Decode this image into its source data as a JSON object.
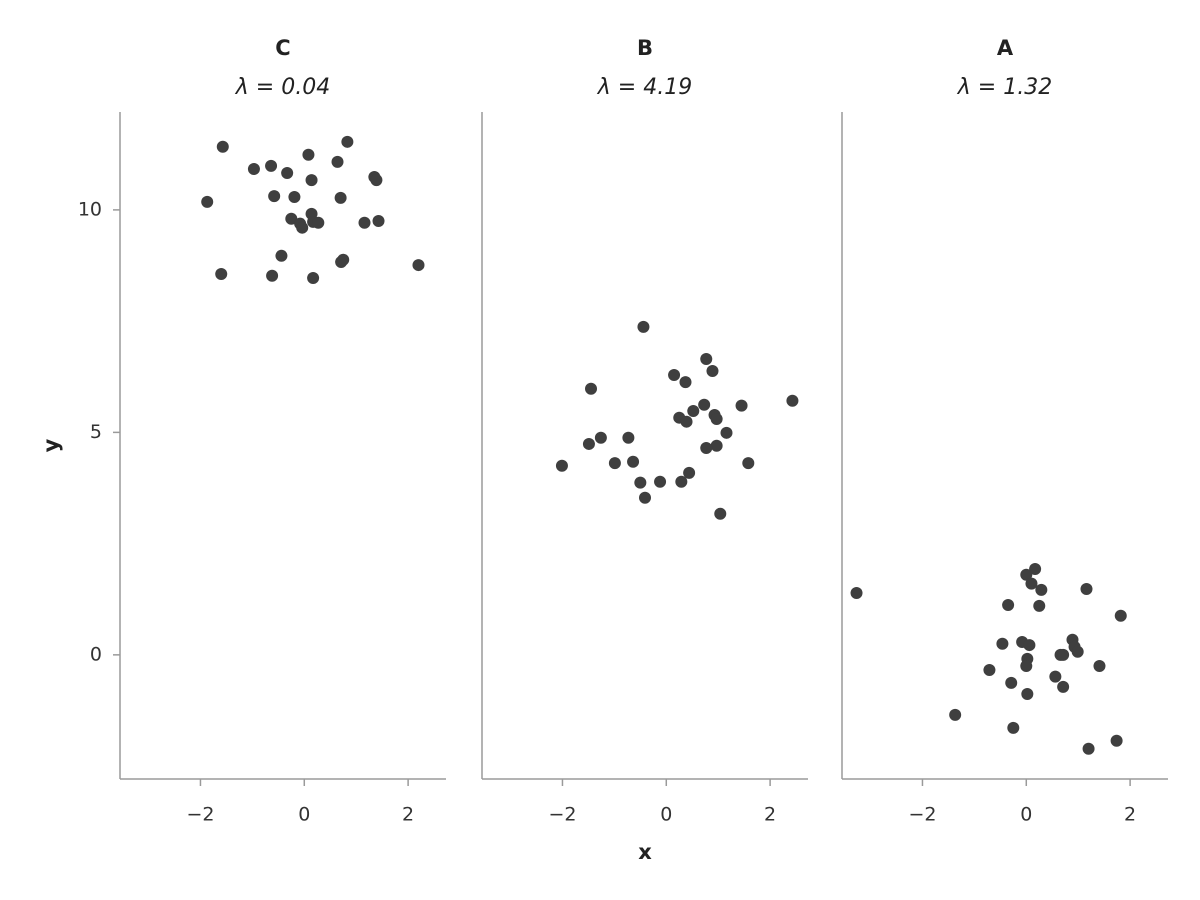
{
  "chart_data": [
    {
      "type": "scatter",
      "title": "C",
      "subtitle": "λ = 0.04",
      "y_label": "y",
      "color": "#3f3f3f",
      "xlim": [
        -3.55,
        2.73
      ],
      "xticks": [
        {
          "value": -2,
          "label": "−2"
        },
        0,
        2
      ],
      "ylim": [
        -2.79,
        12.2
      ],
      "yticks": [
        0,
        5,
        10
      ],
      "x": [
        -1.57,
        0.83,
        0.08,
        -0.97,
        -0.64,
        -0.33,
        0.64,
        0.14,
        1.35,
        1.39,
        -1.87,
        -0.58,
        -0.19,
        0.7,
        0.14,
        -0.25,
        -0.08,
        -0.04,
        0.17,
        0.27,
        1.16,
        1.43,
        -0.44,
        -1.6,
        -0.62,
        0.17,
        0.71,
        0.75,
        2.2
      ],
      "values": [
        11.42,
        11.53,
        11.24,
        10.92,
        10.99,
        10.83,
        11.08,
        10.67,
        10.74,
        10.67,
        10.18,
        10.31,
        10.29,
        10.27,
        9.91,
        9.8,
        9.69,
        9.6,
        9.73,
        9.71,
        9.71,
        9.75,
        8.97,
        8.56,
        8.52,
        8.47,
        8.83,
        8.88,
        8.76
      ]
    },
    {
      "type": "scatter",
      "title": "B",
      "subtitle": "λ = 4.19",
      "x_label": "x",
      "color": "#3f3f3f",
      "xlim": [
        -3.55,
        2.73
      ],
      "xticks": [
        {
          "value": -2,
          "label": "−2"
        },
        0,
        2
      ],
      "ylim": [
        -2.79,
        12.2
      ],
      "x": [
        -0.44,
        0.77,
        0.89,
        0.15,
        0.37,
        -1.45,
        2.43,
        1.45,
        0.73,
        0.52,
        0.93,
        0.25,
        0.97,
        0.39,
        1.16,
        -1.26,
        -0.73,
        -1.49,
        0.97,
        0.77,
        -2.01,
        -0.99,
        -0.64,
        1.58,
        0.44,
        -0.5,
        -0.12,
        0.29,
        -0.41,
        1.04
      ],
      "values": [
        7.37,
        6.65,
        6.38,
        6.29,
        6.13,
        5.98,
        5.71,
        5.6,
        5.62,
        5.48,
        5.39,
        5.33,
        5.3,
        5.24,
        4.99,
        4.88,
        4.88,
        4.74,
        4.7,
        4.65,
        4.25,
        4.31,
        4.34,
        4.31,
        4.09,
        3.87,
        3.89,
        3.89,
        3.53,
        3.17
      ]
    },
    {
      "type": "scatter",
      "title": "A",
      "subtitle": "λ = 1.32",
      "color": "#3f3f3f",
      "xlim": [
        -3.55,
        2.73
      ],
      "xticks": [
        {
          "value": -2,
          "label": "−2"
        },
        0,
        2
      ],
      "ylim": [
        -2.79,
        12.2
      ],
      "x": [
        0.17,
        0.0,
        0.1,
        0.29,
        1.16,
        -3.27,
        -0.35,
        0.25,
        1.82,
        -0.46,
        -0.08,
        0.06,
        0.89,
        0.93,
        0.99,
        0.66,
        0.71,
        0.02,
        0.0,
        -0.71,
        1.41,
        0.56,
        -0.29,
        0.71,
        0.02,
        -1.37,
        -0.25,
        1.74,
        1.2
      ],
      "values": [
        1.93,
        1.8,
        1.6,
        1.46,
        1.48,
        1.39,
        1.12,
        1.1,
        0.88,
        0.25,
        0.29,
        0.22,
        0.34,
        0.18,
        0.07,
        0.0,
        0.0,
        -0.09,
        -0.25,
        -0.34,
        -0.25,
        -0.49,
        -0.63,
        -0.72,
        -0.88,
        -1.35,
        -1.64,
        -1.93,
        -2.11
      ]
    }
  ]
}
